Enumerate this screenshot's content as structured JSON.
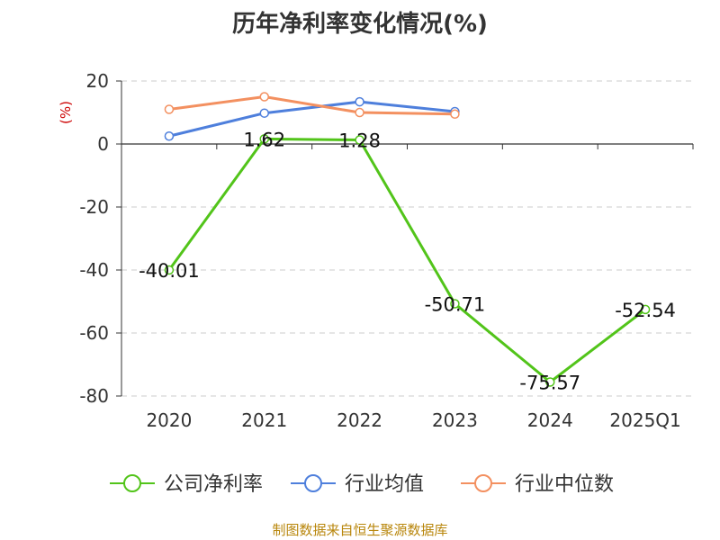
{
  "chart_data": {
    "type": "line",
    "title": "历年净利率变化情况(%)",
    "ylabel": "(%)",
    "categories": [
      "2020",
      "2021",
      "2022",
      "2023",
      "2024",
      "2025Q1"
    ],
    "ylim": [
      -80,
      20
    ],
    "yticks": [
      "20",
      "0",
      "-20",
      "-40",
      "-60",
      "-80"
    ],
    "grid": true,
    "legend_position": "bottom",
    "series": [
      {
        "name": "公司净利率",
        "color": "#52c41a",
        "values": [
          -40.01,
          1.62,
          1.28,
          -50.71,
          -75.57,
          -52.54
        ],
        "labels": [
          "-40.01",
          "1.62",
          "1.28",
          "-50.71",
          "-75.57",
          "-52.54"
        ]
      },
      {
        "name": "行业均值",
        "color": "#4e7fdc",
        "values": [
          2.5,
          9.8,
          13.4,
          10.3,
          null,
          null
        ]
      },
      {
        "name": "行业中位数",
        "color": "#f39060",
        "values": [
          11.0,
          15.0,
          10.0,
          9.5,
          null,
          null
        ]
      }
    ],
    "source": "制图数据来自恒生聚源数据库"
  }
}
